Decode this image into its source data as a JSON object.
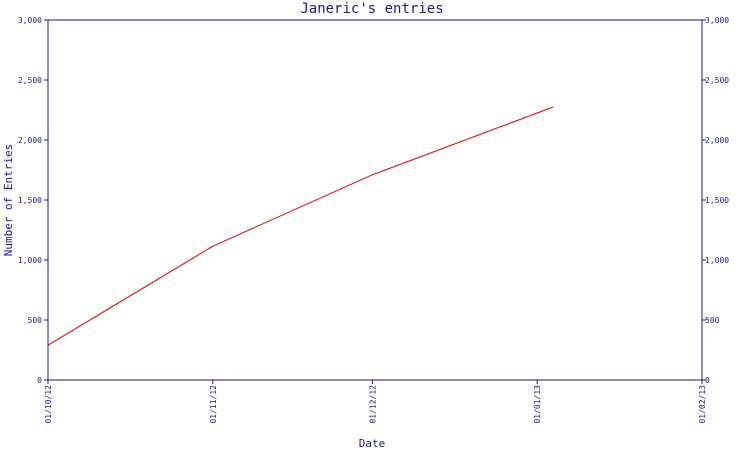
{
  "chart_data": {
    "type": "line",
    "title": "Janeric's entries",
    "xlabel": "Date",
    "ylabel": "Number of Entries",
    "ylim": [
      0,
      3000
    ],
    "yticks": [
      0,
      500,
      1000,
      1500,
      2000,
      2500,
      3000
    ],
    "ytick_labels": [
      "0",
      "500",
      "1,000",
      "1,500",
      "2,000",
      "2,500",
      "3,000"
    ],
    "xlim": [
      "2012-10-01",
      "2013-02-01"
    ],
    "xticks": [
      "2012-10-01",
      "2012-11-01",
      "2012-12-01",
      "2013-01-01",
      "2013-02-01"
    ],
    "xtick_labels": [
      "01/10/12",
      "01/11/12",
      "01/12/12",
      "01/01/13",
      "01/02/13"
    ],
    "grid": false,
    "right_axis": true,
    "series": [
      {
        "color": "#e00000",
        "x": [
          "2012-10-01",
          "2012-11-01",
          "2012-12-01",
          "2013-01-04"
        ],
        "y": [
          290,
          1115,
          1710,
          2275
        ]
      }
    ]
  }
}
